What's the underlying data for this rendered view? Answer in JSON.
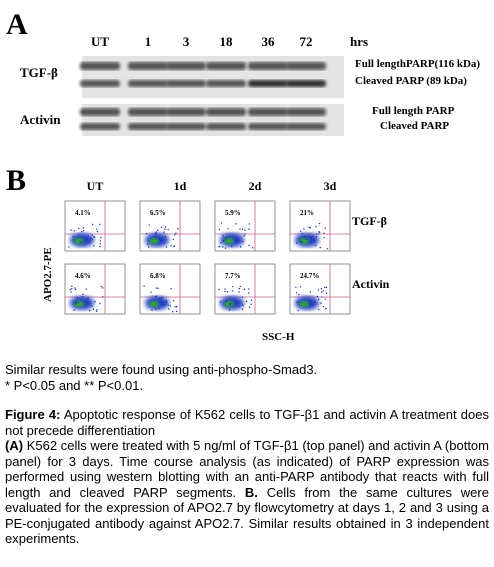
{
  "panel_a": {
    "label": "A",
    "lanes": [
      "UT",
      "1",
      "3",
      "18",
      "36",
      "72"
    ],
    "unit": "hrs",
    "rows": [
      {
        "name": "TGF-β",
        "bands": [
          "Full lengthPARP(116 kDa)",
          "Cleaved PARP (89 kDa)"
        ]
      },
      {
        "name": "Activin",
        "bands": [
          "Full length PARP",
          "Cleaved PARP"
        ]
      }
    ]
  },
  "panel_b": {
    "label": "B",
    "columns": [
      "UT",
      "1d",
      "2d",
      "3d"
    ],
    "y_label": "APO2.7-PE",
    "x_label": "SSC-H",
    "rows": [
      {
        "name": "TGF-β",
        "percentages": [
          "4.1%",
          "6.5%",
          "5.9%",
          "21%"
        ]
      },
      {
        "name": "Activin",
        "percentages": [
          "4.6%",
          "6.8%",
          "7.7%",
          "24.7%"
        ]
      }
    ]
  },
  "notes": [
    "Similar results were found using anti-phospho-Smad3.",
    "* P<0.05 and ** P<0.01."
  ],
  "caption": {
    "title": "Figure 4:",
    "text": "Apoptotic response of K562 cells to TGF-β1 and activin A treatment does not precede differentiation",
    "part_a_label": "(A)",
    "part_a": "K562 cells were treated with 5 ng/ml of TGF-β1 (top panel) and activin A (bottom panel) for 3 days. Time course analysis (as indicated) of PARP expression was performed using western blotting with an anti-PARP antibody that reacts with full length and cleaved PARP segments.",
    "part_b_label": "B.",
    "part_b": "Cells from the same cultures were evaluated for the expression of APO2.7 by flowcytometry at days 1, 2 and 3 using a PE-conjugated antibody against APO2.7. Similar results obtained in 3 independent experiments."
  }
}
